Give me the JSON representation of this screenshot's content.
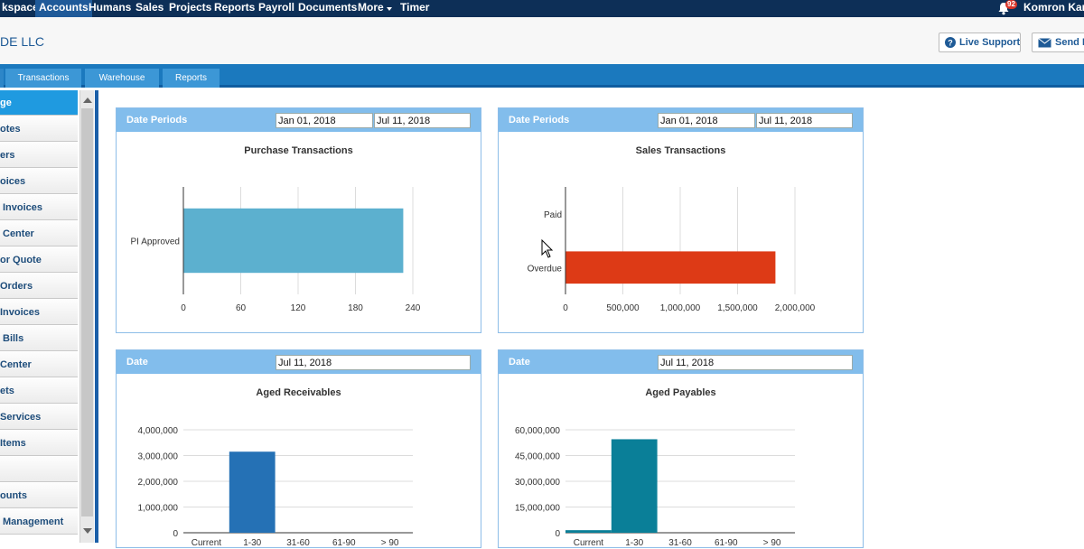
{
  "topnav": {
    "items": [
      {
        "label": "kspace",
        "active": false
      },
      {
        "label": "Accounts",
        "active": true
      },
      {
        "label": "Humans",
        "active": false
      },
      {
        "label": "Sales",
        "active": false
      },
      {
        "label": "Projects",
        "active": false
      },
      {
        "label": "Reports",
        "active": false
      },
      {
        "label": "Payroll",
        "active": false
      },
      {
        "label": "Documents",
        "active": false
      },
      {
        "label": "More",
        "active": false
      },
      {
        "label": "Timer",
        "active": false
      }
    ],
    "notifications_count": "92",
    "user_name": "Komron Kam"
  },
  "header": {
    "company": "DE LLC",
    "live_support": "Live Support",
    "send": "Send F"
  },
  "tabs": [
    "Transactions",
    "Warehouse",
    "Reports"
  ],
  "sidebar": {
    "items": [
      "ge",
      "otes",
      "ers",
      "oices",
      "Invoices",
      "Center",
      "or Quote",
      "Orders",
      "Invoices",
      "Bills",
      "Center",
      "ets",
      "Services",
      "Items",
      "",
      "ounts",
      "Management"
    ]
  },
  "panels": {
    "purchase": {
      "label": "Date Periods",
      "from": "Jan 01, 2018",
      "to": "Jul 11, 2018",
      "title": "Purchase Transactions"
    },
    "sales": {
      "label": "Date Periods",
      "from": "Jan 01, 2018",
      "to": "Jul 11, 2018",
      "title": "Sales Transactions"
    },
    "receivables": {
      "label": "Date",
      "date": "Jul 11, 2018",
      "title": "Aged Receivables"
    },
    "payables": {
      "label": "Date",
      "date": "Jul 11, 2018",
      "title": "Aged Payables"
    }
  },
  "chart_data": [
    {
      "type": "bar",
      "orientation": "horizontal",
      "title": "Purchase Transactions",
      "categories": [
        "PI Approved"
      ],
      "values": [
        230
      ],
      "xlim": [
        0,
        240
      ],
      "xticks": [
        "0",
        "60",
        "120",
        "180",
        "240"
      ],
      "color": "#5cb0cf",
      "grid": true
    },
    {
      "type": "bar",
      "orientation": "horizontal",
      "title": "Sales Transactions",
      "categories": [
        "Paid",
        "Overdue"
      ],
      "values": [
        0,
        1830000
      ],
      "xlim": [
        0,
        2000000
      ],
      "xticks": [
        "0",
        "500,000",
        "1,000,000",
        "1,500,000",
        "2,000,000"
      ],
      "color": "#dd3a16",
      "grid": true
    },
    {
      "type": "bar",
      "title": "Aged Receivables",
      "categories": [
        "Current",
        "1-30",
        "31-60",
        "61-90",
        "> 90"
      ],
      "values": [
        0,
        3150000,
        0,
        0,
        0
      ],
      "ylim": [
        0,
        4000000
      ],
      "yticks": [
        "0",
        "1,000,000",
        "2,000,000",
        "3,000,000",
        "4,000,000"
      ],
      "color": "#2571b5",
      "grid": true
    },
    {
      "type": "bar",
      "title": "Aged Payables",
      "categories": [
        "Current",
        "1-30",
        "31-60",
        "61-90",
        "> 90"
      ],
      "values": [
        1500000,
        54500000,
        0,
        0,
        0
      ],
      "ylim": [
        0,
        60000000
      ],
      "yticks": [
        "0",
        "15,000,000",
        "30,000,000",
        "45,000,000",
        "60,000,000"
      ],
      "color": "#0a7f98",
      "grid": true
    }
  ]
}
